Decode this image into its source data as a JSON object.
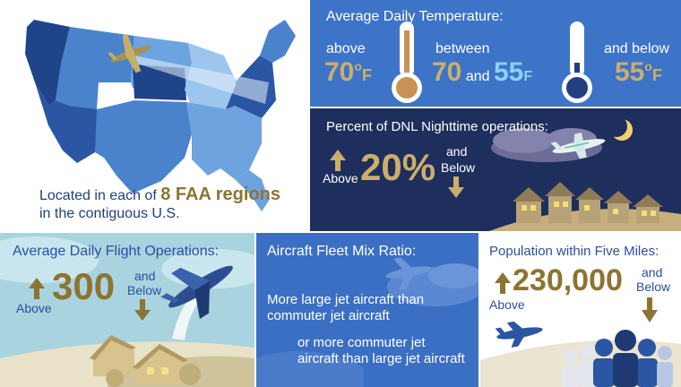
{
  "map": {
    "caption_pre": "Located in each of ",
    "caption_highlight": "8 FAA regions",
    "caption_line2": "in the contiguous U.S."
  },
  "temperature": {
    "heading": "Average Daily Temperature:",
    "above_label": "above",
    "above_value": "70",
    "above_unit": "o",
    "above_unit_letter": "F",
    "between_label": "between",
    "between_low": "70",
    "between_and": "and",
    "between_high": "55",
    "between_unit": "F",
    "below_label": "and below",
    "below_value": "55",
    "below_unit": "o",
    "below_unit_letter": "F"
  },
  "nighttime": {
    "heading": "Percent of DNL Nighttime operations:",
    "above_label": "Above",
    "value": "20%",
    "and_label": "and",
    "below_label": "Below"
  },
  "flights": {
    "heading": "Average Daily Flight Operations:",
    "above_label": "Above",
    "value": "300",
    "and_label": "and",
    "below_label": "Below"
  },
  "fleet": {
    "heading": "Aircraft Fleet Mix Ratio:",
    "line1": "More large jet aircraft than",
    "line2": "commuter jet aircraft",
    "line3": "or more commuter jet",
    "line4": "aircraft than large jet aircraft"
  },
  "population": {
    "heading": "Population within Five Miles:",
    "above_label": "Above",
    "value": "230,000",
    "and_label": "and",
    "below_label": "Below"
  },
  "colors": {
    "gold": "#ccae6a",
    "navy": "#1e2f5e",
    "blue": "#3d74c8",
    "lightblue": "#8fd0f0"
  }
}
